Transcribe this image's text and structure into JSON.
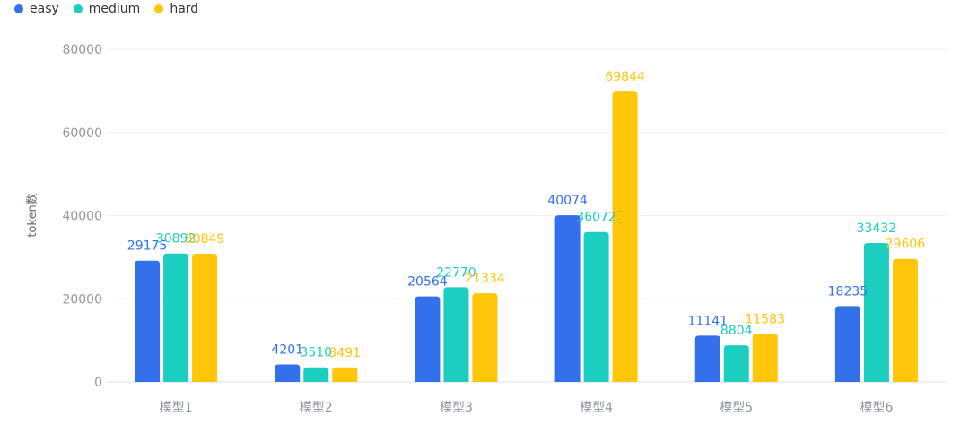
{
  "chart_data": {
    "type": "bar",
    "categories": [
      "模型1",
      "模型2",
      "模型3",
      "模型4",
      "模型5",
      "模型6"
    ],
    "series": [
      {
        "name": "easy",
        "color": "#3370EB",
        "values": [
          29175,
          4201,
          20564,
          40074,
          11141,
          18235
        ]
      },
      {
        "name": "medium",
        "color": "#1BCEBF",
        "values": [
          30892,
          3510,
          22770,
          36072,
          8804,
          33432
        ]
      },
      {
        "name": "hard",
        "color": "#FFC60A",
        "values": [
          30849,
          3491,
          21334,
          69844,
          11583,
          29606
        ]
      }
    ],
    "ylabel": "token数",
    "ylim": [
      0,
      80000
    ],
    "yticks": [
      0,
      20000,
      40000,
      60000,
      80000
    ],
    "legend_position": "top-left",
    "grid": true
  }
}
